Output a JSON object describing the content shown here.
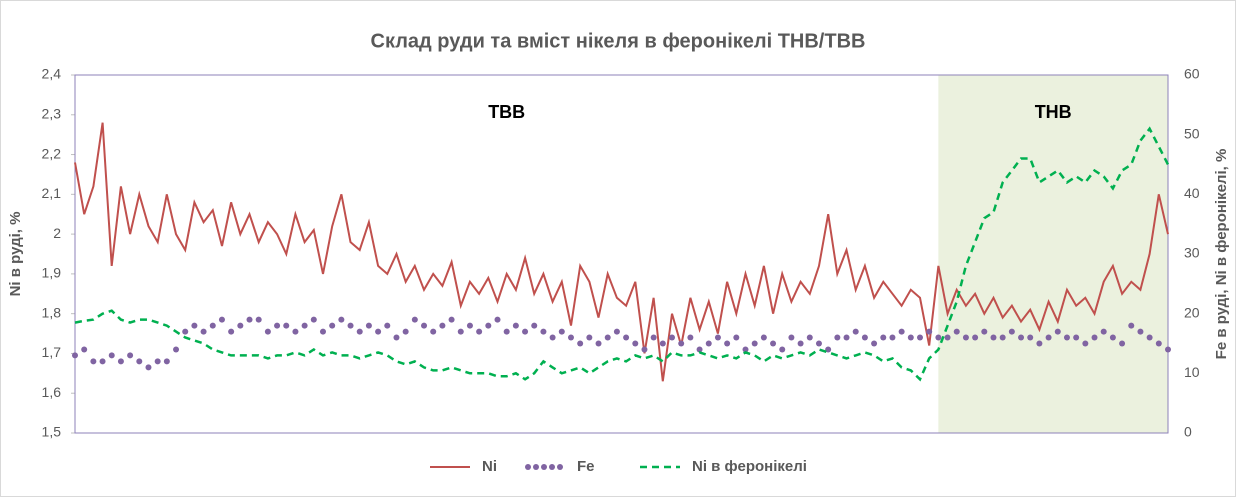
{
  "chart_data": {
    "type": "line",
    "title": "Склад руди та вміст нікеля в феронікелі ТНВ/ТВВ",
    "y_label": "Ni в руді, %",
    "y2_label": "Fe в руді, Ni в феронікелі, %",
    "ylim": [
      1.5,
      2.4
    ],
    "yticks": [
      {
        "value": 1.5,
        "label": "1,5"
      },
      {
        "value": 1.6,
        "label": "1,6"
      },
      {
        "value": 1.7,
        "label": "1,7"
      },
      {
        "value": 1.8,
        "label": "1,8"
      },
      {
        "value": 1.9,
        "label": "1,9"
      },
      2,
      {
        "value": 2.1,
        "label": "2,1"
      },
      {
        "value": 2.2,
        "label": "2,2"
      },
      {
        "value": 2.3,
        "label": "2,3"
      },
      {
        "value": 2.4,
        "label": "2,4"
      }
    ],
    "y2lim": [
      0,
      60
    ],
    "y2ticks": [
      0,
      10,
      20,
      30,
      40,
      50,
      60
    ],
    "regions": [
      {
        "label": "ТВВ",
        "start": 0,
        "end": 94,
        "color": null
      },
      {
        "label": "ТНВ",
        "start": 94,
        "end": 119,
        "color": "#ebf1de"
      }
    ],
    "legend": "bottom",
    "series": [
      {
        "name": "Ni",
        "color": "#c0504d",
        "style": "solid",
        "axis": "y",
        "values": [
          2.18,
          2.05,
          2.12,
          2.28,
          1.92,
          2.12,
          2.0,
          2.1,
          2.02,
          1.98,
          2.1,
          2.0,
          1.96,
          2.08,
          2.03,
          2.06,
          1.97,
          2.08,
          2.0,
          2.05,
          1.98,
          2.03,
          2.0,
          1.95,
          2.05,
          1.98,
          2.01,
          1.9,
          2.02,
          2.1,
          1.98,
          1.96,
          2.03,
          1.92,
          1.9,
          1.95,
          1.88,
          1.92,
          1.86,
          1.9,
          1.87,
          1.93,
          1.82,
          1.88,
          1.85,
          1.89,
          1.83,
          1.9,
          1.86,
          1.94,
          1.85,
          1.9,
          1.83,
          1.88,
          1.77,
          1.92,
          1.88,
          1.79,
          1.9,
          1.84,
          1.82,
          1.88,
          1.7,
          1.84,
          1.63,
          1.8,
          1.72,
          1.84,
          1.76,
          1.83,
          1.75,
          1.88,
          1.8,
          1.9,
          1.82,
          1.92,
          1.8,
          1.9,
          1.83,
          1.88,
          1.85,
          1.92,
          2.05,
          1.9,
          1.96,
          1.86,
          1.92,
          1.84,
          1.88,
          1.85,
          1.82,
          1.86,
          1.84,
          1.72,
          1.92,
          1.8,
          1.86,
          1.82,
          1.85,
          1.8,
          1.84,
          1.79,
          1.82,
          1.78,
          1.81,
          1.76,
          1.83,
          1.78,
          1.86,
          1.82,
          1.84,
          1.8,
          1.88,
          1.92,
          1.85,
          1.88,
          1.86,
          1.95,
          2.1,
          2.0
        ]
      },
      {
        "name": "Fe",
        "color": "#8064a2",
        "style": "dots",
        "axis": "y2",
        "values": [
          13,
          14,
          12,
          12,
          13,
          12,
          13,
          12,
          11,
          12,
          12,
          14,
          17,
          18,
          17,
          18,
          19,
          17,
          18,
          19,
          19,
          17,
          18,
          18,
          17,
          18,
          19,
          17,
          18,
          19,
          18,
          17,
          18,
          17,
          18,
          16,
          17,
          19,
          18,
          17,
          18,
          19,
          17,
          18,
          17,
          18,
          19,
          17,
          18,
          17,
          18,
          17,
          16,
          17,
          16,
          15,
          16,
          15,
          16,
          17,
          16,
          15,
          14,
          16,
          15,
          16,
          15,
          16,
          14,
          15,
          16,
          15,
          16,
          14,
          15,
          16,
          15,
          14,
          16,
          15,
          16,
          15,
          14,
          16,
          16,
          17,
          16,
          15,
          16,
          16,
          17,
          16,
          16,
          17,
          16,
          16,
          17,
          16,
          16,
          17,
          16,
          16,
          17,
          16,
          16,
          15,
          16,
          17,
          16,
          16,
          15,
          16,
          17,
          16,
          15,
          18,
          17,
          16,
          15,
          14
        ]
      },
      {
        "name": "Ni в феронікелі",
        "color": "#00b050",
        "style": "dashed",
        "axis": "y2",
        "values": [
          18.5,
          18.8,
          19,
          20,
          20.5,
          19,
          18.5,
          19,
          19,
          18.5,
          18,
          17,
          16,
          15.5,
          15,
          14,
          13.5,
          13,
          13,
          13,
          13,
          12.5,
          13,
          13,
          13.5,
          13,
          14,
          13,
          13.5,
          13,
          13,
          12.5,
          13,
          13.5,
          13,
          12,
          11.5,
          12,
          11,
          10.5,
          10.5,
          11,
          10.5,
          10,
          10,
          10,
          9.5,
          9.5,
          10,
          9,
          10,
          12,
          11,
          10,
          10.5,
          11,
          10,
          11,
          12,
          12.5,
          12,
          13,
          12.5,
          13,
          12,
          13.5,
          13,
          13,
          13.5,
          13,
          12.5,
          13,
          12.5,
          13.5,
          13,
          12,
          13,
          12.5,
          13,
          13.5,
          13,
          14,
          13.5,
          13,
          12.5,
          13,
          13.5,
          13,
          12,
          12.5,
          11,
          10.5,
          9,
          12.5,
          14,
          18,
          22,
          28,
          32,
          36,
          37,
          42,
          44,
          46,
          46,
          42,
          43,
          44,
          42,
          43,
          42,
          44,
          43,
          41,
          44,
          45,
          49,
          51,
          48,
          45
        ]
      }
    ]
  }
}
